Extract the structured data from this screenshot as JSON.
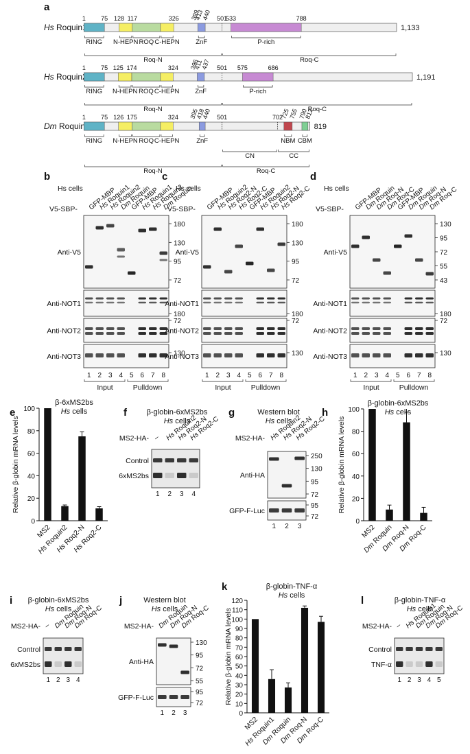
{
  "panel_a": {
    "letter": "a",
    "proteins": [
      {
        "species": "Hs",
        "name": "Roquin1",
        "length": "1,133",
        "top_numbers": [
          "1",
          "75",
          "128",
          "117",
          "326",
          "399",
          "413",
          "440",
          "501",
          "533",
          "788"
        ],
        "domains": [
          "RING",
          "N-HEPN",
          "ROQ",
          "C-HEPN",
          "ZnF",
          "P-rich"
        ],
        "regions": [
          "Roq-N",
          "Roq-C"
        ]
      },
      {
        "species": "Hs",
        "name": "Roquin2",
        "length": "1,191",
        "top_numbers": [
          "1",
          "75",
          "125",
          "174",
          "324",
          "396",
          "411",
          "437",
          "501",
          "575",
          "686"
        ],
        "domains": [
          "RING",
          "N-HEPN",
          "ROQ",
          "C-HEPN",
          "ZnF",
          "P-rich"
        ],
        "regions": [
          "Roq-N",
          "Roq-C"
        ]
      },
      {
        "species": "Dm",
        "name": "Roquin",
        "length": "819",
        "top_numbers": [
          "1",
          "75",
          "126",
          "175",
          "324",
          "395",
          "418",
          "440",
          "501",
          "702",
          "725",
          "755",
          "790",
          "812"
        ],
        "domains": [
          "RING",
          "N-HEPN",
          "ROQ",
          "C-HEPN",
          "ZnF",
          "NBM",
          "CBM"
        ],
        "subregions": [
          "CN",
          "CC"
        ],
        "regions": [
          "Roq-N",
          "Roq-C"
        ]
      }
    ],
    "colors": {
      "RING": "#5fb3c6",
      "HEPN": "#f5ee63",
      "ROQ": "#b9dba0",
      "ZnF": "#8c9be0",
      "P-rich": "#c78ad3",
      "NBM": "#c0474e",
      "CBM": "#7fcf94",
      "backbone": "#efefef"
    }
  },
  "panel_b": {
    "letter": "b",
    "cells": "Hs cells",
    "prefix": "V5-SBP-",
    "lanes": [
      "GFP-MBP",
      "Hs Roquin1",
      "Hs Roquin2",
      "Dm Roquin",
      "GFP-MBP",
      "Hs Roquin1",
      "Hs Roquin2",
      "Dm Roquin"
    ],
    "blots": [
      {
        "label": "Anti-V5",
        "markers": [
          "180",
          "130",
          "95",
          "72"
        ]
      },
      {
        "label": "Anti-NOT1",
        "markers": [
          "180"
        ]
      },
      {
        "label": "Anti-NOT2",
        "markers": [
          "72"
        ]
      },
      {
        "label": "Anti-NOT3",
        "markers": [
          "130"
        ]
      }
    ],
    "lane_numbers": [
      "1",
      "2",
      "3",
      "4",
      "5",
      "6",
      "7",
      "8"
    ],
    "groups": [
      "Input",
      "Pulldown"
    ]
  },
  "panel_c": {
    "letter": "c",
    "cells": "Hs cells",
    "prefix": "V5-SBP-",
    "lanes": [
      "GFP-MBP",
      "Hs Roquin2",
      "Hs Roq2-N",
      "Hs Roq2-C",
      "GFP-MBP",
      "Hs Roquin2",
      "Hs Roq2-N",
      "Hs Roq2-C"
    ],
    "blots": [
      {
        "label": "Anti-V5",
        "markers": [
          "180",
          "130",
          "95",
          "72"
        ]
      },
      {
        "label": "Anti-NOT1",
        "markers": [
          "180"
        ]
      },
      {
        "label": "Anti-NOT2",
        "markers": [
          "72"
        ]
      },
      {
        "label": "Anti-NOT3",
        "markers": [
          "130"
        ]
      }
    ],
    "lane_numbers": [
      "1",
      "2",
      "3",
      "4",
      "5",
      "6",
      "7",
      "8"
    ],
    "groups": [
      "Input",
      "Pulldown"
    ]
  },
  "panel_d": {
    "letter": "d",
    "cells": "Hs cells",
    "prefix": "V5-SBP-",
    "lanes": [
      "GFP-MBP",
      "Dm Roquin",
      "Dm Roq-N",
      "Dm Roq-C",
      "GFP-MBP",
      "Dm Roquin",
      "Dm Roq-N",
      "Dm Roq-C"
    ],
    "blots": [
      {
        "label": "Anti-V5",
        "markers": [
          "130",
          "95",
          "72",
          "55",
          "43"
        ]
      },
      {
        "label": "Anti-NOT1",
        "markers": [
          "180"
        ]
      },
      {
        "label": "Anti-NOT2",
        "markers": [
          "72"
        ]
      },
      {
        "label": "Anti-NOT3",
        "markers": [
          "130"
        ]
      }
    ],
    "lane_numbers": [
      "1",
      "2",
      "3",
      "4",
      "5",
      "6",
      "7",
      "8"
    ],
    "groups": [
      "Input",
      "Pulldown"
    ]
  },
  "panel_f": {
    "letter": "f",
    "title": "β-globin-6xMS2bs",
    "cells": "Hs cells",
    "prefix": "MS2-HA-",
    "lanes": [
      "–",
      "Hs Roquin2",
      "Hs Roq2-N",
      "Hs Roq2-C"
    ],
    "band_labels": [
      "Control",
      "6xMS2bs"
    ],
    "lane_numbers": [
      "1",
      "2",
      "3",
      "4"
    ]
  },
  "panel_g": {
    "letter": "g",
    "title": "Western blot",
    "cells": "Hs cells",
    "prefix": "MS2-HA-",
    "lanes": [
      "Hs Roquin2",
      "Hs Roq2-N",
      "Hs Roq2-C"
    ],
    "blots": [
      {
        "label": "Anti-HA",
        "markers": [
          "250",
          "130",
          "95",
          "72"
        ]
      },
      {
        "label": "GFP-F-Luc",
        "markers": [
          "95",
          "72"
        ]
      }
    ],
    "lane_numbers": [
      "1",
      "2",
      "3"
    ]
  },
  "panel_i": {
    "letter": "i",
    "title": "β-globin-6xMS2bs",
    "cells": "Hs cells",
    "prefix": "MS2-HA-",
    "lanes": [
      "–",
      "Dm Roquin",
      "Dm Roq-N",
      "Dm Roq-C"
    ],
    "band_labels": [
      "Control",
      "6xMS2bs"
    ],
    "lane_numbers": [
      "1",
      "2",
      "3",
      "4"
    ]
  },
  "panel_j": {
    "letter": "j",
    "title": "Western blot",
    "cells": "Hs cells",
    "prefix": "MS2-HA-",
    "lanes": [
      "Dm Roquin",
      "Dm Roq-N",
      "Dm Roq-C"
    ],
    "blots": [
      {
        "label": "Anti-HA",
        "markers": [
          "130",
          "95",
          "72",
          "55"
        ]
      },
      {
        "label": "GFP-F-Luc",
        "markers": [
          "95",
          "72"
        ]
      }
    ],
    "lane_numbers": [
      "1",
      "2",
      "3"
    ]
  },
  "panel_l": {
    "letter": "l",
    "title": "β-globin-TNF-α",
    "cells": "Hs cells",
    "prefix": "MS2-HA-",
    "lanes": [
      "–",
      "Hs Roquin1",
      "Dm Roquin",
      "Dm Roq-N",
      "Dm Roq-C"
    ],
    "band_labels": [
      "Control",
      "TNF-α"
    ],
    "lane_numbers": [
      "1",
      "2",
      "3",
      "4",
      "5"
    ]
  },
  "chart_data": [
    {
      "panel": "e",
      "type": "bar",
      "title": "β-6xMS2bs",
      "subtitle": "Hs cells",
      "ylabel": "Relative β-globin mRNA levels",
      "ylim": [
        0,
        100
      ],
      "yticks": [
        "0",
        "20",
        "40",
        "60",
        "80",
        "100"
      ],
      "categories": [
        "MS2",
        "Hs Roquin2",
        "Hs Roq2-N",
        "Hs Roq2-C"
      ],
      "values": [
        100,
        13,
        75,
        11
      ],
      "errors": [
        0,
        1,
        4,
        1.5
      ]
    },
    {
      "panel": "h",
      "type": "bar",
      "title": "β-globin-6xMS2bs",
      "subtitle": "Hs cells",
      "ylabel": "Relative β-globin mRNA levels",
      "ylim": [
        0,
        100
      ],
      "yticks": [
        "0",
        "20",
        "40",
        "60",
        "80",
        "100"
      ],
      "categories": [
        "MS2",
        "Dm Roquin",
        "Dm Roq-N",
        "Dm Roq-C"
      ],
      "values": [
        100,
        10,
        88,
        7
      ],
      "errors": [
        0,
        4,
        9,
        5
      ]
    },
    {
      "panel": "k",
      "type": "bar",
      "title": "β-globin-TNF-α",
      "subtitle": "Hs cells",
      "ylabel": "Relative β-globin mRNA levels",
      "ylim": [
        0,
        120
      ],
      "yticks": [
        "0",
        "10",
        "20",
        "30",
        "40",
        "50",
        "60",
        "70",
        "80",
        "90",
        "100",
        "110",
        "120"
      ],
      "categories": [
        "MS2",
        "Hs Roquin1",
        "Dm Roquin",
        "Dm Roq-N",
        "Dm Roq-C"
      ],
      "values": [
        100,
        36,
        27,
        112,
        97
      ],
      "errors": [
        0,
        10,
        5,
        2,
        6
      ]
    }
  ]
}
